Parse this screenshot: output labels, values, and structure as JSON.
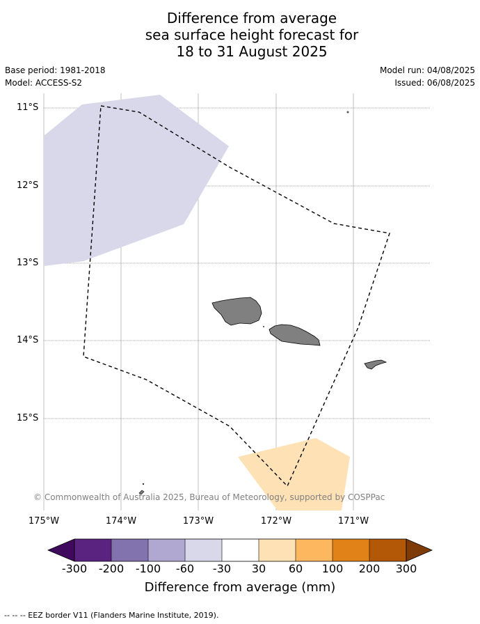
{
  "title": {
    "line1": "Difference from average",
    "line2": "sea surface height forecast for",
    "line3": "18 to 31 August 2025"
  },
  "meta": {
    "base_period": "Base period: 1981-2018",
    "model": "Model: ACCESS-S2",
    "model_run": "Model run: 04/08/2025",
    "issued": "Issued: 06/08/2025"
  },
  "axes": {
    "lat_ticks": [
      "11°S",
      "12°S",
      "13°S",
      "14°S",
      "15°S"
    ],
    "lon_ticks": [
      "175°W",
      "174°W",
      "173°W",
      "172°W",
      "171°W"
    ]
  },
  "copyright": "© Commonwealth of Australia 2025, Bureau of Meteorology, supported by COSPPac",
  "colorbar": {
    "labels": [
      "-300",
      "-200",
      "-100",
      "-60",
      "-30",
      "30",
      "60",
      "100",
      "200",
      "300"
    ],
    "colors": [
      "#3f0a5e",
      "#59237f",
      "#8272ad",
      "#b1a8d1",
      "#d8d8ea",
      "#ffffff",
      "#ffe1b6",
      "#fcb75f",
      "#e08217",
      "#b35806",
      "#7e3b08"
    ],
    "title": "Difference from average (mm)"
  },
  "legend": {
    "eez": "--  --  -- EEZ border V11 (Flanders Marine Institute, 2019)."
  },
  "map_colors": {
    "negative_region": "#d8d8ea",
    "positive_region": "#ffe1b6",
    "land": "#808080"
  }
}
